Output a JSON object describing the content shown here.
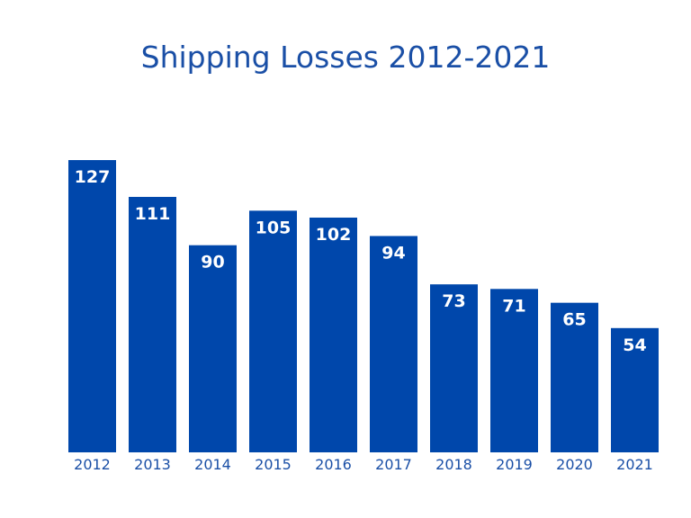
{
  "chart_data": {
    "type": "bar",
    "title": "Shipping Losses 2012-2021",
    "xlabel": "",
    "ylabel": "",
    "categories": [
      "2012",
      "2013",
      "2014",
      "2015",
      "2016",
      "2017",
      "2018",
      "2019",
      "2020",
      "2021"
    ],
    "values": [
      127,
      111,
      90,
      105,
      102,
      94,
      73,
      71,
      65,
      54
    ],
    "ylim": [
      0,
      127
    ],
    "grid": false,
    "legend": "none",
    "data_labels": "inside-top",
    "colors": {
      "bar": "#0047AB",
      "title": "#1a4fa6",
      "tick_labels": "#1a4fa6",
      "value_labels": "#ffffff"
    }
  }
}
